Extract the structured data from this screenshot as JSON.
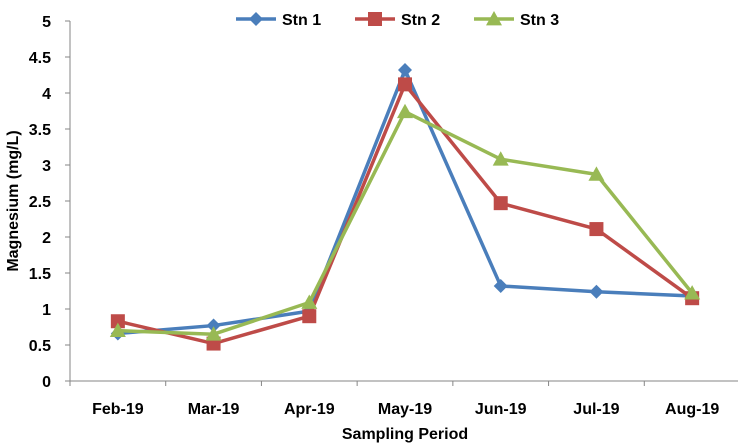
{
  "chart_data": {
    "type": "line",
    "title": "",
    "xlabel": "Sampling Period",
    "ylabel": "Magnesium (mg/L)",
    "categories": [
      "Feb-19",
      "Mar-19",
      "Apr-19",
      "May-19",
      "Jun-19",
      "Jul-19",
      "Aug-19"
    ],
    "ylim": [
      0,
      5
    ],
    "yticks": [
      "0",
      "0.5",
      "1",
      "1.5",
      "2",
      "2.5",
      "3",
      "3.5",
      "4",
      "4.5",
      "5"
    ],
    "grid": false,
    "legend_position": "top",
    "series": [
      {
        "name": "Stn 1",
        "color": "#4a7ebb",
        "marker": "diamond",
        "values": [
          0.66,
          0.77,
          0.97,
          4.32,
          1.32,
          1.24,
          1.18
        ]
      },
      {
        "name": "Stn 2",
        "color": "#be4b48",
        "marker": "square",
        "values": [
          0.83,
          0.52,
          0.9,
          4.12,
          2.47,
          2.11,
          1.15
        ]
      },
      {
        "name": "Stn 3",
        "color": "#98b954",
        "marker": "triangle",
        "values": [
          0.7,
          0.65,
          1.09,
          3.74,
          3.08,
          2.87,
          1.22
        ]
      }
    ]
  }
}
